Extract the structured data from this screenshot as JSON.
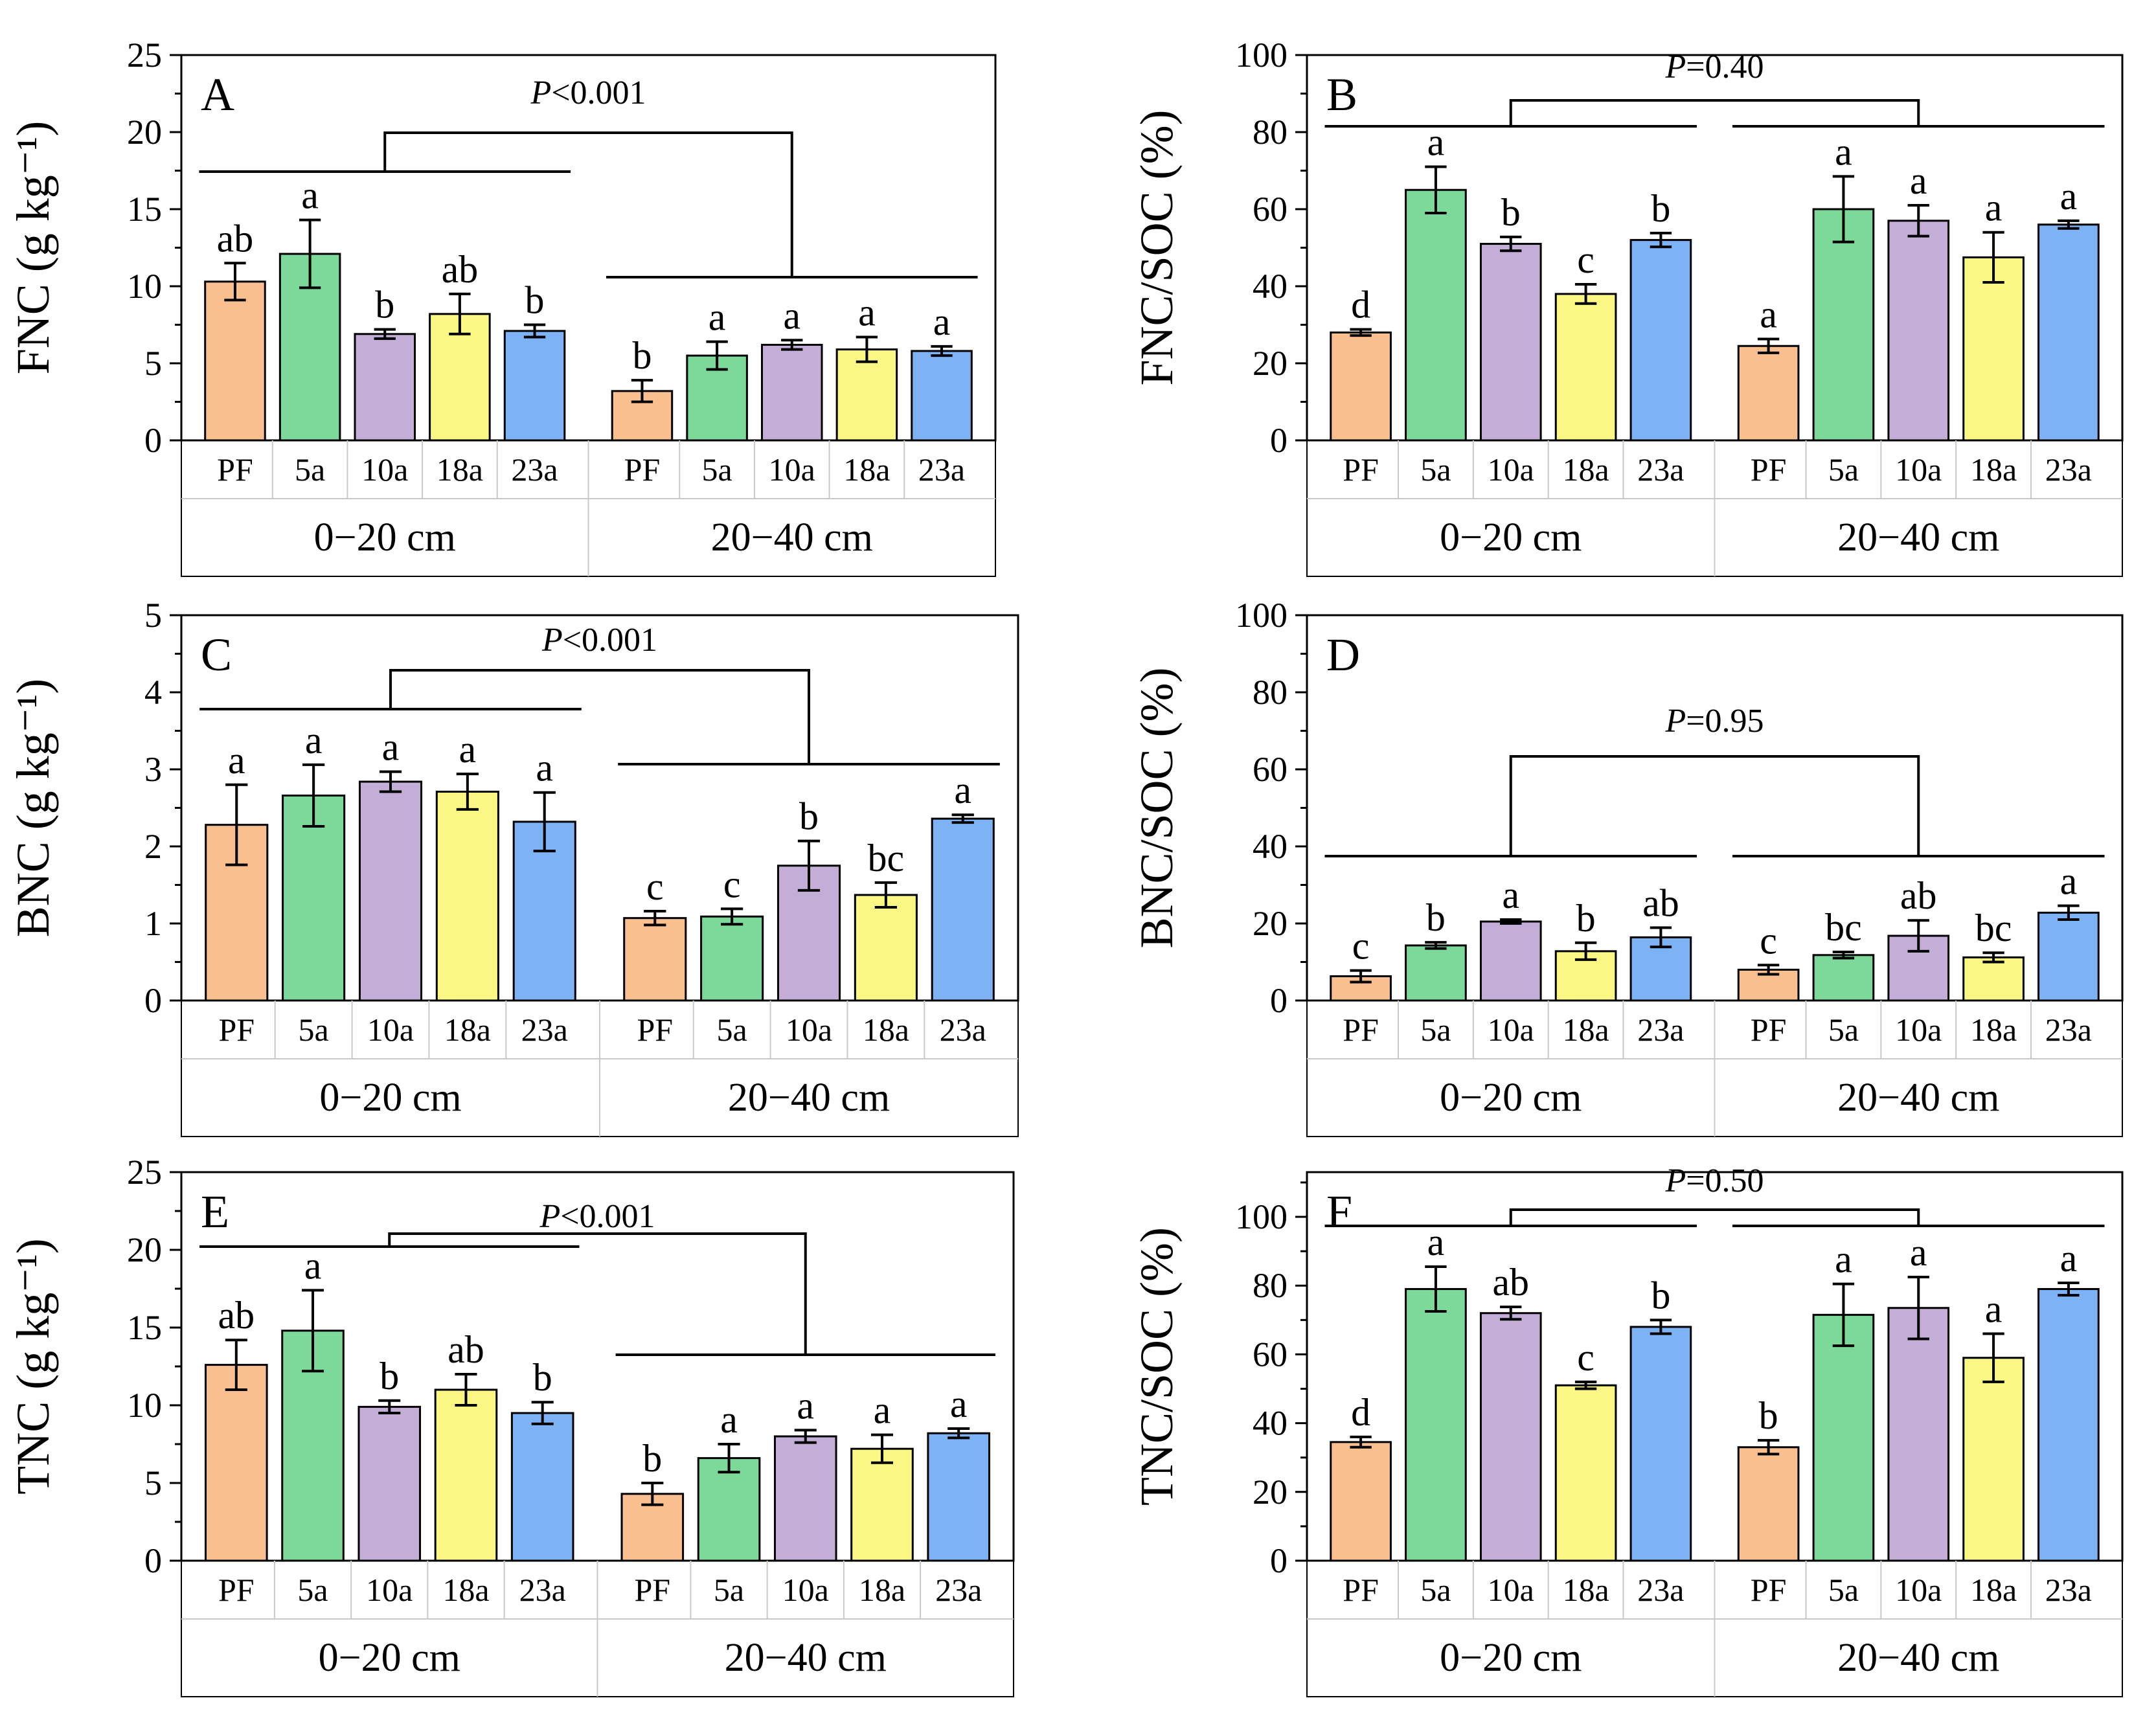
{
  "colors": {
    "PF": "#F9BF8F",
    "5a": "#7DD99A",
    "10a": "#C4ADD6",
    "18a": "#FBF785",
    "23a": "#7DB2F5",
    "frame": "#000000"
  },
  "depth_labels": [
    "0−20 cm",
    "20−40 cm"
  ],
  "chart_data": [
    {
      "type": "bar",
      "panel": "A",
      "ylabel": "FNC (g kg⁻¹)",
      "ylim": [
        0,
        25
      ],
      "yticks": [
        0,
        5,
        10,
        15,
        20,
        25
      ],
      "categories": [
        "PF",
        "5a",
        "10a",
        "18a",
        "23a"
      ],
      "series": [
        {
          "name": "0−20 cm",
          "values": [
            10.3,
            12.1,
            6.9,
            8.2,
            7.1
          ],
          "errors": [
            1.2,
            2.2,
            0.3,
            1.3,
            0.4
          ],
          "letters": [
            "ab",
            "a",
            "b",
            "ab",
            "b"
          ]
        },
        {
          "name": "20−40 cm",
          "values": [
            3.2,
            5.5,
            6.2,
            5.9,
            5.8
          ],
          "errors": [
            0.7,
            0.9,
            0.3,
            0.8,
            0.3
          ],
          "letters": [
            "b",
            "a",
            "a",
            "a",
            "a"
          ]
        }
      ],
      "p_text": "P<0.001"
    },
    {
      "type": "bar",
      "panel": "B",
      "ylabel": "FNC/SOC (%)",
      "ylim": [
        0,
        100
      ],
      "yticks": [
        0,
        20,
        40,
        60,
        80,
        100
      ],
      "categories": [
        "PF",
        "5a",
        "10a",
        "18a",
        "23a"
      ],
      "series": [
        {
          "name": "0−20 cm",
          "values": [
            28,
            65,
            51,
            38,
            52
          ],
          "errors": [
            0.8,
            6,
            1.8,
            2.5,
            1.8
          ],
          "letters": [
            "d",
            "a",
            "b",
            "c",
            "b"
          ]
        },
        {
          "name": "20−40 cm",
          "values": [
            24.5,
            60,
            57,
            47.5,
            56
          ],
          "errors": [
            1.8,
            8.5,
            4,
            6.5,
            1
          ],
          "letters": [
            "a",
            "a",
            "a",
            "a",
            "a"
          ]
        }
      ],
      "p_text": "P=0.40"
    },
    {
      "type": "bar",
      "panel": "C",
      "ylabel": "BNC (g kg⁻¹)",
      "ylim": [
        0,
        5
      ],
      "yticks": [
        0,
        1,
        2,
        3,
        4,
        5
      ],
      "categories": [
        "PF",
        "5a",
        "10a",
        "18a",
        "23a"
      ],
      "series": [
        {
          "name": "0−20 cm",
          "values": [
            2.28,
            2.66,
            2.84,
            2.71,
            2.32
          ],
          "errors": [
            0.52,
            0.4,
            0.13,
            0.23,
            0.38
          ],
          "letters": [
            "a",
            "a",
            "a",
            "a",
            "a"
          ]
        },
        {
          "name": "20−40 cm",
          "values": [
            1.07,
            1.09,
            1.75,
            1.37,
            2.36
          ],
          "errors": [
            0.09,
            0.1,
            0.32,
            0.16,
            0.05
          ],
          "letters": [
            "c",
            "c",
            "b",
            "bc",
            "a"
          ]
        }
      ],
      "p_text": "P<0.001"
    },
    {
      "type": "bar",
      "panel": "D",
      "ylabel": "BNC/SOC (%)",
      "ylim": [
        0,
        100
      ],
      "yticks": [
        0,
        20,
        40,
        60,
        80,
        100
      ],
      "categories": [
        "PF",
        "5a",
        "10a",
        "18a",
        "23a"
      ],
      "series": [
        {
          "name": "0−20 cm",
          "values": [
            6.3,
            14.3,
            20.5,
            12.8,
            16.4
          ],
          "errors": [
            1.5,
            0.8,
            0.5,
            2.2,
            2.5
          ],
          "letters": [
            "c",
            "b",
            "a",
            "b",
            "ab"
          ]
        },
        {
          "name": "20−40 cm",
          "values": [
            8,
            11.8,
            16.8,
            11.2,
            22.8
          ],
          "errors": [
            1.2,
            0.8,
            4,
            1.2,
            1.8
          ],
          "letters": [
            "c",
            "bc",
            "ab",
            "bc",
            "a"
          ]
        }
      ],
      "p_text": "P=0.95"
    },
    {
      "type": "bar",
      "panel": "E",
      "ylabel": "TNC (g kg⁻¹)",
      "ylim": [
        0,
        25
      ],
      "yticks": [
        0,
        5,
        10,
        15,
        20,
        25
      ],
      "categories": [
        "PF",
        "5a",
        "10a",
        "18a",
        "23a"
      ],
      "series": [
        {
          "name": "0−20 cm",
          "values": [
            12.6,
            14.8,
            9.9,
            11,
            9.5
          ],
          "errors": [
            1.6,
            2.6,
            0.4,
            1,
            0.7
          ],
          "letters": [
            "ab",
            "a",
            "b",
            "ab",
            "b"
          ]
        },
        {
          "name": "20−40 cm",
          "values": [
            4.3,
            6.6,
            8,
            7.2,
            8.2
          ],
          "errors": [
            0.7,
            0.9,
            0.4,
            0.9,
            0.3
          ],
          "letters": [
            "b",
            "a",
            "a",
            "a",
            "a"
          ]
        }
      ],
      "p_text": "P<0.001"
    },
    {
      "type": "bar",
      "panel": "F",
      "ylabel": "TNC/SOC (%)",
      "ylim": [
        0,
        113
      ],
      "yticks": [
        0,
        20,
        40,
        60,
        80,
        100
      ],
      "categories": [
        "PF",
        "5a",
        "10a",
        "18a",
        "23a"
      ],
      "series": [
        {
          "name": "0−20 cm",
          "values": [
            34.5,
            79,
            72,
            51,
            68
          ],
          "errors": [
            1.5,
            6.5,
            1.8,
            1,
            2
          ],
          "letters": [
            "d",
            "a",
            "ab",
            "c",
            "b"
          ]
        },
        {
          "name": "20−40 cm",
          "values": [
            33,
            71.5,
            73.5,
            59,
            79
          ],
          "errors": [
            2,
            9,
            9,
            7,
            1.8
          ],
          "letters": [
            "b",
            "a",
            "a",
            "a",
            "a"
          ]
        }
      ],
      "p_text": "P=0.50"
    }
  ]
}
